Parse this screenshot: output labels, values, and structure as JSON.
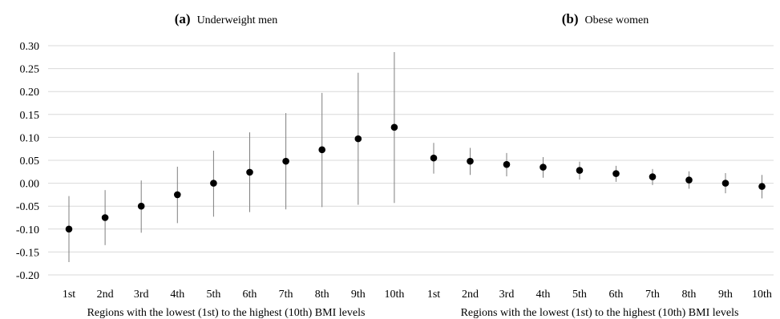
{
  "chart_data": {
    "type": "scatter",
    "subtype": "point-with-error-bars",
    "ylim": [
      -0.2,
      0.3
    ],
    "yticks": [
      "-0.20",
      "-0.15",
      "-0.10",
      "-0.05",
      "0.00",
      "0.05",
      "0.10",
      "0.15",
      "0.20",
      "0.25",
      "0.30"
    ],
    "ytick_values": [
      -0.2,
      -0.15,
      -0.1,
      -0.05,
      0.0,
      0.05,
      0.1,
      0.15,
      0.2,
      0.25,
      0.3
    ],
    "grid": "horizontal",
    "colors": {
      "point": "#000000",
      "errorbar": "#7f7f7f",
      "grid": "#d9d9d9"
    },
    "panels": [
      {
        "title_letter": "(a)",
        "title_text": "Underweight men",
        "xlabel": "Regions with the lowest (1st) to the highest (10th) BMI levels",
        "categories": [
          "1st",
          "2nd",
          "3rd",
          "4th",
          "5th",
          "6th",
          "7th",
          "8th",
          "9th",
          "10th"
        ],
        "values": [
          -0.1,
          -0.075,
          -0.05,
          -0.025,
          0.0,
          0.024,
          0.048,
          0.073,
          0.097,
          0.122
        ],
        "lower": [
          -0.172,
          -0.135,
          -0.108,
          -0.087,
          -0.073,
          -0.063,
          -0.057,
          -0.052,
          -0.047,
          -0.043
        ],
        "upper": [
          -0.028,
          -0.015,
          0.006,
          0.036,
          0.071,
          0.111,
          0.153,
          0.197,
          0.241,
          0.286
        ]
      },
      {
        "title_letter": "(b)",
        "title_text": "Obese women",
        "xlabel": "Regions with the lowest (1st) to the highest (10th) BMI levels",
        "categories": [
          "1st",
          "2nd",
          "3rd",
          "4th",
          "5th",
          "6th",
          "7th",
          "8th",
          "9th",
          "10th"
        ],
        "values": [
          0.055,
          0.048,
          0.041,
          0.035,
          0.028,
          0.021,
          0.014,
          0.007,
          0.0,
          -0.007
        ],
        "lower": [
          0.021,
          0.018,
          0.015,
          0.012,
          0.008,
          0.003,
          -0.004,
          -0.012,
          -0.022,
          -0.033
        ],
        "upper": [
          0.088,
          0.077,
          0.066,
          0.057,
          0.047,
          0.038,
          0.031,
          0.026,
          0.022,
          0.018
        ]
      }
    ]
  }
}
